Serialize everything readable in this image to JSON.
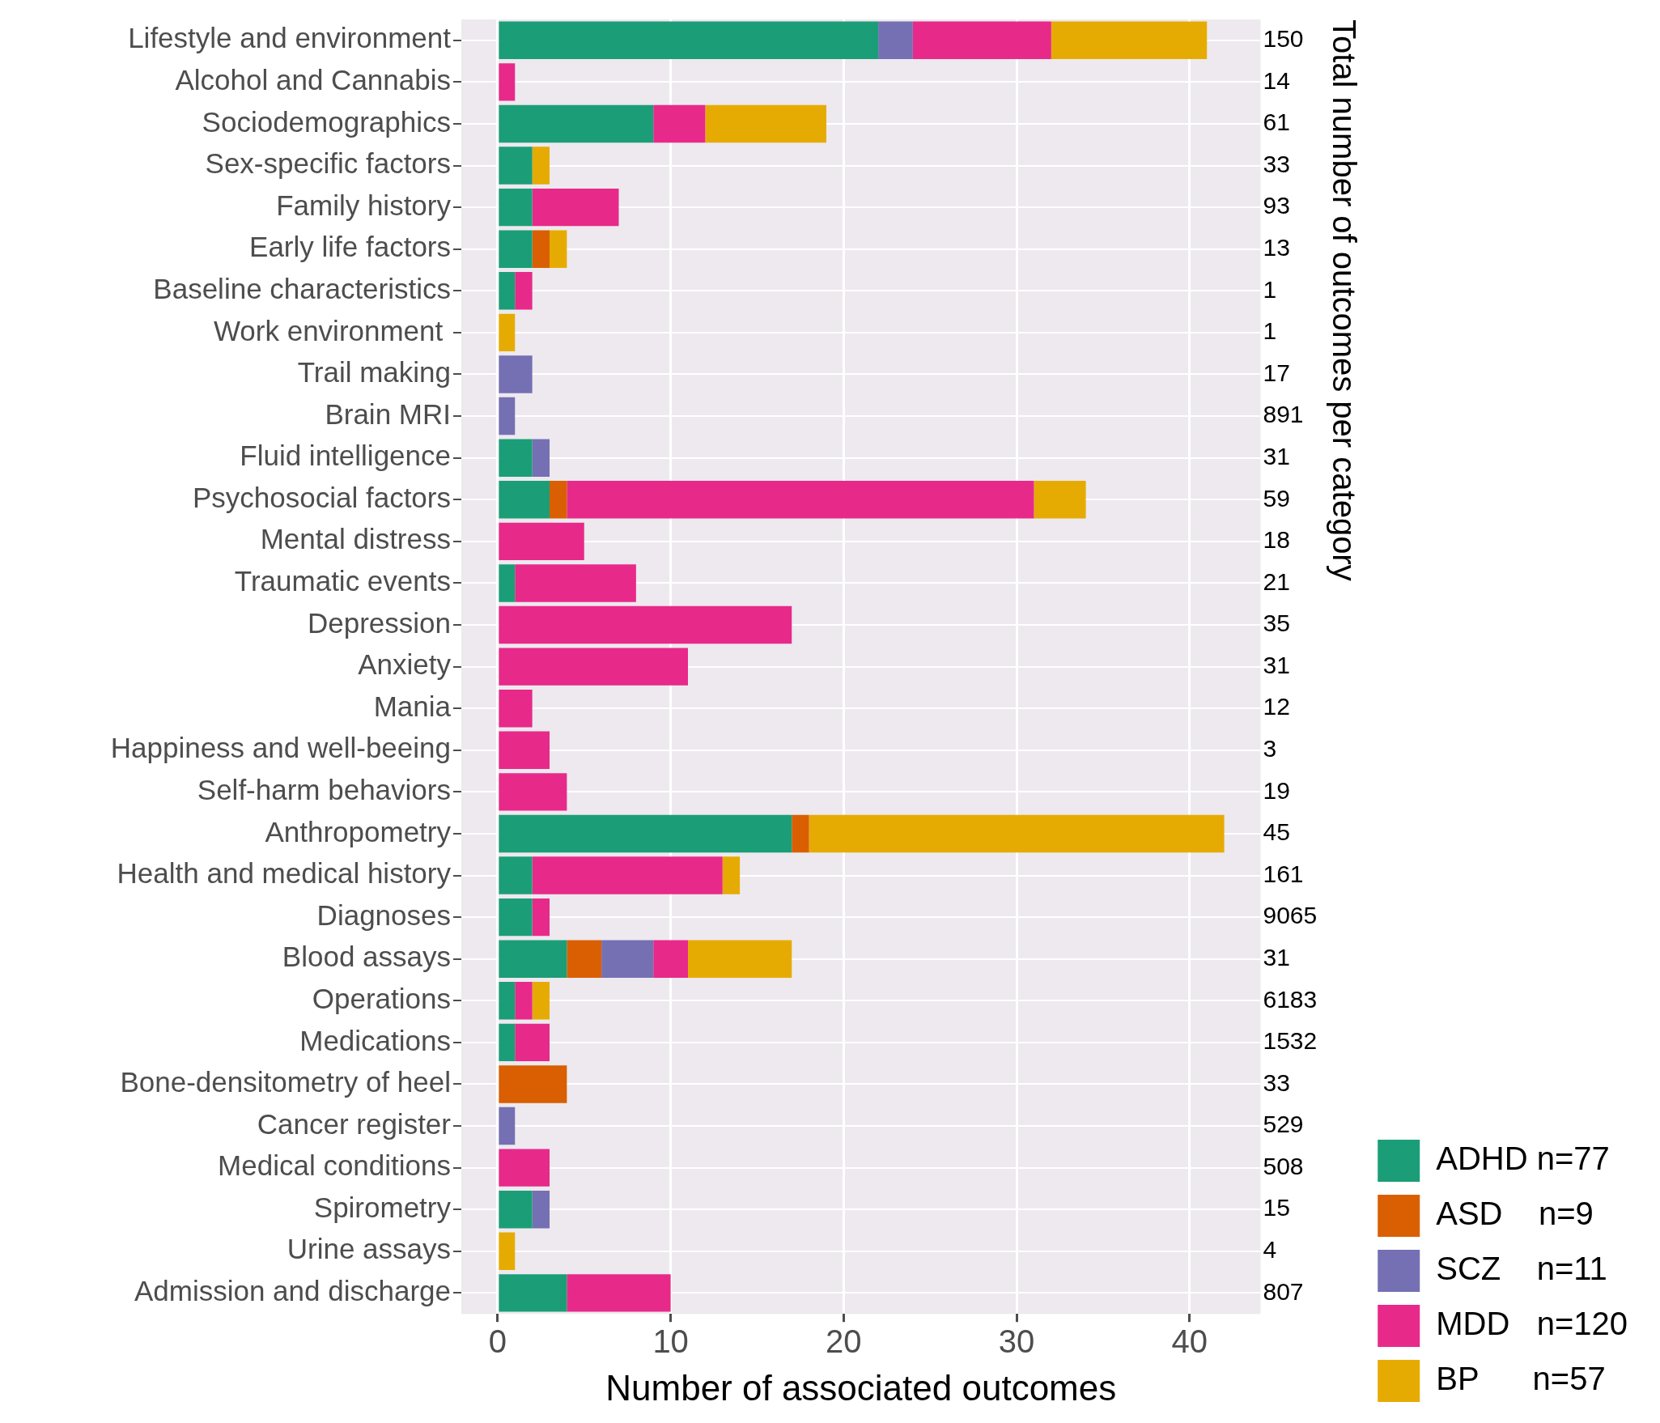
{
  "chart_data": {
    "type": "bar",
    "orientation": "horizontal",
    "stacked": true,
    "xlabel": "Number of associated outcomes",
    "y2label": "Total number of outcomes per category",
    "categories": [
      "Lifestyle and environment",
      "Alcohol and Cannabis",
      "Sociodemographics",
      "Sex-specific factors",
      "Family history",
      "Early life factors",
      "Baseline characteristics",
      "Work environment ",
      "Trail making",
      "Brain MRI",
      "Fluid intelligence",
      "Psychosocial factors",
      "Mental distress",
      "Traumatic events",
      "Depression",
      "Anxiety",
      "Mania",
      "Happiness and well-beeing",
      "Self-harm behaviors",
      "Anthropometry",
      "Health and medical history",
      "Diagnoses",
      "Blood assays",
      "Operations",
      "Medications",
      "Bone-densitometry of heel",
      "Cancer register",
      "Medical conditions",
      "Spirometry",
      "Urine assays",
      "Admission and discharge"
    ],
    "y2_categories": [
      "150",
      "14",
      "61",
      "33",
      "93",
      "13",
      "1",
      "1",
      "17",
      "891",
      "31",
      "59",
      "18",
      "21",
      "35",
      "31",
      "12",
      "3",
      "19",
      "45",
      "161",
      "9065",
      "31",
      "6183",
      "1532",
      "33",
      "529",
      "508",
      "15",
      "4",
      "807"
    ],
    "series": [
      {
        "name": "ADHD n=77",
        "color": "#1b9e77",
        "values": [
          22,
          0,
          9,
          2,
          2,
          2,
          1,
          0,
          0,
          0,
          2,
          3,
          0,
          1,
          0,
          0,
          0,
          0,
          0,
          17,
          2,
          2,
          4,
          1,
          1,
          0,
          0,
          0,
          2,
          0,
          4
        ]
      },
      {
        "name": "ASD    n=9",
        "color": "#d95f02",
        "values": [
          0,
          0,
          0,
          0,
          0,
          1,
          0,
          0,
          0,
          0,
          0,
          1,
          0,
          0,
          0,
          0,
          0,
          0,
          0,
          1,
          0,
          0,
          2,
          0,
          0,
          4,
          0,
          0,
          0,
          0,
          0
        ]
      },
      {
        "name": "SCZ    n=11",
        "color": "#7570b3",
        "values": [
          2,
          0,
          0,
          0,
          0,
          0,
          0,
          0,
          2,
          1,
          1,
          0,
          0,
          0,
          0,
          0,
          0,
          0,
          0,
          0,
          0,
          0,
          3,
          0,
          0,
          0,
          1,
          0,
          1,
          0,
          0
        ]
      },
      {
        "name": "MDD   n=120",
        "color": "#e7298a",
        "values": [
          8,
          1,
          3,
          0,
          5,
          0,
          1,
          0,
          0,
          0,
          0,
          27,
          5,
          7,
          17,
          11,
          2,
          3,
          4,
          0,
          11,
          1,
          2,
          1,
          2,
          0,
          0,
          3,
          0,
          0,
          6
        ]
      },
      {
        "name": "BP      n=57",
        "color": "#e6ab02",
        "values": [
          9,
          0,
          7,
          1,
          0,
          1,
          0,
          1,
          0,
          0,
          0,
          3,
          0,
          0,
          0,
          0,
          0,
          0,
          0,
          24,
          1,
          0,
          6,
          1,
          0,
          0,
          0,
          0,
          0,
          1,
          0
        ]
      }
    ],
    "xlim": [
      -2.1,
      44.1
    ],
    "xticks": [
      0,
      10,
      20,
      30,
      40
    ],
    "grid": true,
    "legend": "bottom right"
  }
}
